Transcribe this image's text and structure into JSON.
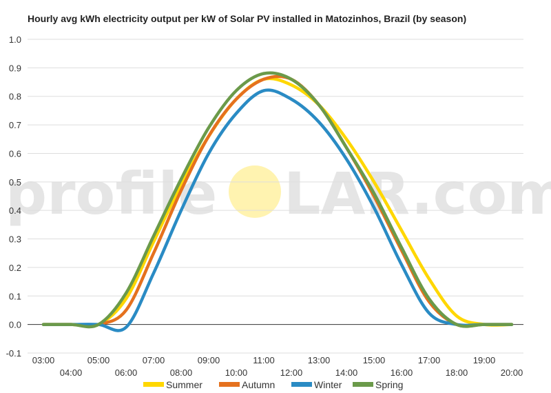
{
  "chart_data": {
    "type": "line",
    "title": "Hourly avg kWh electricity output per kW of Solar PV installed in Matozinhos, Brazil (by season)",
    "xlabel": "",
    "ylabel": "",
    "ylim": [
      -0.1,
      1.0
    ],
    "yticks": [
      "1.0",
      "0.9",
      "0.8",
      "0.7",
      "0.6",
      "0.5",
      "0.4",
      "0.3",
      "0.2",
      "0.1",
      "0.0",
      "-0.1"
    ],
    "x": [
      "03:00",
      "04:00",
      "05:00",
      "06:00",
      "07:00",
      "08:00",
      "09:00",
      "10:00",
      "11:00",
      "12:00",
      "13:00",
      "14:00",
      "15:00",
      "16:00",
      "17:00",
      "18:00",
      "19:00",
      "20:00"
    ],
    "grid": true,
    "legend_position": "bottom",
    "series": [
      {
        "name": "Summer",
        "color": "#ffd700",
        "values": [
          0,
          0,
          0,
          0.09,
          0.29,
          0.49,
          0.66,
          0.79,
          0.86,
          0.84,
          0.77,
          0.65,
          0.5,
          0.33,
          0.16,
          0.03,
          0,
          0
        ]
      },
      {
        "name": "Autumn",
        "color": "#e5711e",
        "values": [
          0,
          0,
          0,
          0.05,
          0.25,
          0.47,
          0.66,
          0.79,
          0.86,
          0.86,
          0.77,
          0.62,
          0.45,
          0.26,
          0.08,
          0,
          0,
          0
        ]
      },
      {
        "name": "Winter",
        "color": "#2a8bc4",
        "values": [
          0,
          0,
          0,
          -0.01,
          0.18,
          0.4,
          0.6,
          0.74,
          0.82,
          0.79,
          0.71,
          0.58,
          0.41,
          0.21,
          0.04,
          0,
          0,
          0
        ]
      },
      {
        "name": "Spring",
        "color": "#6b9a4a",
        "values": [
          0,
          0,
          0,
          0.11,
          0.31,
          0.51,
          0.69,
          0.82,
          0.88,
          0.86,
          0.77,
          0.62,
          0.46,
          0.27,
          0.09,
          0,
          0,
          0
        ]
      }
    ]
  },
  "watermark": {
    "text_left": "profile",
    "text_right": "LAR.com",
    "sun_color": "#fff3b0"
  }
}
